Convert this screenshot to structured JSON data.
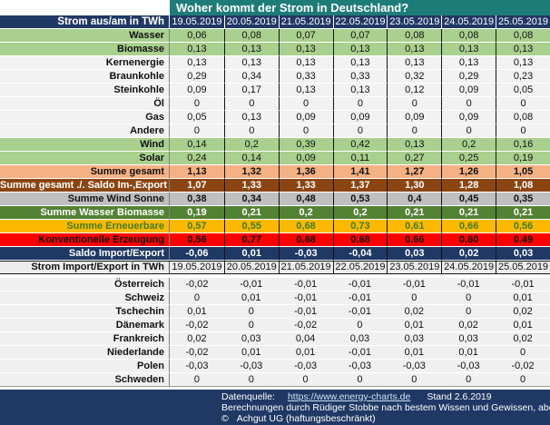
{
  "title": "Woher kommt der Strom in Deutschland?",
  "table1": {
    "header_label": "Strom aus/am in TWh",
    "dates": [
      "19.05.2019",
      "20.05.2019",
      "21.05.2019",
      "22.05.2019",
      "23.05.2019",
      "24.05.2019",
      "25.05.2019"
    ]
  },
  "generation_rows": [
    {
      "label": "Wasser",
      "style": "green",
      "values": [
        "0,06",
        "0,08",
        "0,07",
        "0,07",
        "0,08",
        "0,08",
        "0,08"
      ]
    },
    {
      "label": "Biomasse",
      "style": "green",
      "values": [
        "0,13",
        "0,13",
        "0,13",
        "0,13",
        "0,13",
        "0,13",
        "0,13"
      ]
    },
    {
      "label": "Kernenergie",
      "style": "light",
      "values": [
        "0,13",
        "0,13",
        "0,13",
        "0,13",
        "0,13",
        "0,13",
        "0,13"
      ]
    },
    {
      "label": "Braunkohle",
      "style": "light",
      "values": [
        "0,29",
        "0,34",
        "0,33",
        "0,33",
        "0,32",
        "0,29",
        "0,23"
      ]
    },
    {
      "label": "Steinkohle",
      "style": "light",
      "values": [
        "0,09",
        "0,17",
        "0,13",
        "0,13",
        "0,12",
        "0,09",
        "0,05"
      ]
    },
    {
      "label": "Öl",
      "style": "light",
      "values": [
        "0",
        "0",
        "0",
        "0",
        "0",
        "0",
        "0"
      ]
    },
    {
      "label": "Gas",
      "style": "light",
      "values": [
        "0,05",
        "0,13",
        "0,09",
        "0,09",
        "0,09",
        "0,09",
        "0,08"
      ]
    },
    {
      "label": "Andere",
      "style": "light",
      "values": [
        "0",
        "0",
        "0",
        "0",
        "0",
        "0",
        "0"
      ]
    },
    {
      "label": "Wind",
      "style": "green",
      "values": [
        "0,14",
        "0,2",
        "0,39",
        "0,42",
        "0,13",
        "0,2",
        "0,16"
      ]
    },
    {
      "label": "Solar",
      "style": "green",
      "values": [
        "0,24",
        "0,14",
        "0,09",
        "0,11",
        "0,27",
        "0,25",
        "0,19"
      ]
    }
  ],
  "summary_rows": [
    {
      "label": "Summe gesamt",
      "style": "salmon",
      "values": [
        "1,13",
        "1,32",
        "1,36",
        "1,41",
        "1,27",
        "1,26",
        "1,05"
      ]
    },
    {
      "label": "Summe gesamt ./. Saldo Im-,Export",
      "style": "brown",
      "values": [
        "1,07",
        "1,33",
        "1,33",
        "1,37",
        "1,30",
        "1,28",
        "1,08"
      ]
    },
    {
      "label": "Summe Wind Sonne",
      "style": "gray",
      "values": [
        "0,38",
        "0,34",
        "0,48",
        "0,53",
        "0,4",
        "0,45",
        "0,35"
      ]
    },
    {
      "label": "Summe Wasser Biomasse",
      "style": "dkgreen",
      "values": [
        "0,19",
        "0,21",
        "0,2",
        "0,2",
        "0,21",
        "0,21",
        "0,21"
      ]
    },
    {
      "label": "Summe Erneuerbare",
      "style": "gold",
      "values": [
        "0,57",
        "0,55",
        "0,68",
        "0,73",
        "0,61",
        "0,66",
        "0,56"
      ]
    },
    {
      "label": "Konventionelle Erzeugung",
      "style": "red",
      "values": [
        "0,56",
        "0,77",
        "0,68",
        "0,68",
        "0,66",
        "0,60",
        "0,49"
      ]
    },
    {
      "label": "Saldo Import/Export",
      "style": "navy",
      "values": [
        "-0,06",
        "0,01",
        "-0,03",
        "-0,04",
        "0,03",
        "0,02",
        "0,03"
      ]
    }
  ],
  "table2": {
    "header_label": "Strom Import/Export in TWh",
    "dates": [
      "19.05.2019",
      "20.05.2019",
      "21.05.2019",
      "22.05.2019",
      "23.05.2019",
      "24.05.2019",
      "25.05.2019"
    ]
  },
  "import_export_rows": [
    {
      "label": "Österreich",
      "values": [
        "-0,02",
        "-0,01",
        "-0,01",
        "-0,01",
        "-0,01",
        "-0,01",
        "-0,01"
      ]
    },
    {
      "label": "Schweiz",
      "values": [
        "0",
        "0,01",
        "-0,01",
        "-0,01",
        "0",
        "0",
        "0,01"
      ]
    },
    {
      "label": "Tschechin",
      "values": [
        "0,01",
        "0",
        "-0,01",
        "-0,01",
        "0,02",
        "0",
        "0,02"
      ]
    },
    {
      "label": "Dänemark",
      "values": [
        "-0,02",
        "0",
        "-0,02",
        "0",
        "0,01",
        "0,02",
        "0,01"
      ]
    },
    {
      "label": "Frankreich",
      "values": [
        "0,02",
        "0,03",
        "0,04",
        "0,03",
        "0,03",
        "0,03",
        "0,02"
      ]
    },
    {
      "label": "Niederlande",
      "values": [
        "-0,02",
        "0,01",
        "0,01",
        "-0,01",
        "0,01",
        "0,01",
        "0"
      ]
    },
    {
      "label": "Polen",
      "values": [
        "-0,03",
        "-0,03",
        "-0,03",
        "-0,03",
        "-0,03",
        "-0,03",
        "-0,02"
      ]
    },
    {
      "label": "Schweden",
      "values": [
        "0",
        "0",
        "0",
        "0",
        "0",
        "0",
        "0"
      ]
    }
  ],
  "footer": {
    "datenquelle_label": "Datenquelle:",
    "link": "https://www.energy-charts.de",
    "stand": "Stand  2.6.2019",
    "line2": "Berechnungen durch Rüdiger Stobbe nach bestem Wissen und Gewissen, aber ohne Gewähr",
    "copyright_symbol": "©",
    "copyright_text": "Achgut UG (haftungsbeschränkt)"
  },
  "colors": {
    "title_bg": "#1E7C78",
    "header_bg": "#203864",
    "green_row": "#A9D08E",
    "light_row": "#F2F2F2",
    "salmon_row": "#F4B183",
    "brown_row": "#8B4513",
    "gray_row": "#BFBFBF",
    "darkgreen_row": "#548235",
    "gold_row": "#FDB900",
    "gold_text": "#3E7D26",
    "red_row": "#FE0000",
    "link_color": "#CFE2F3"
  }
}
